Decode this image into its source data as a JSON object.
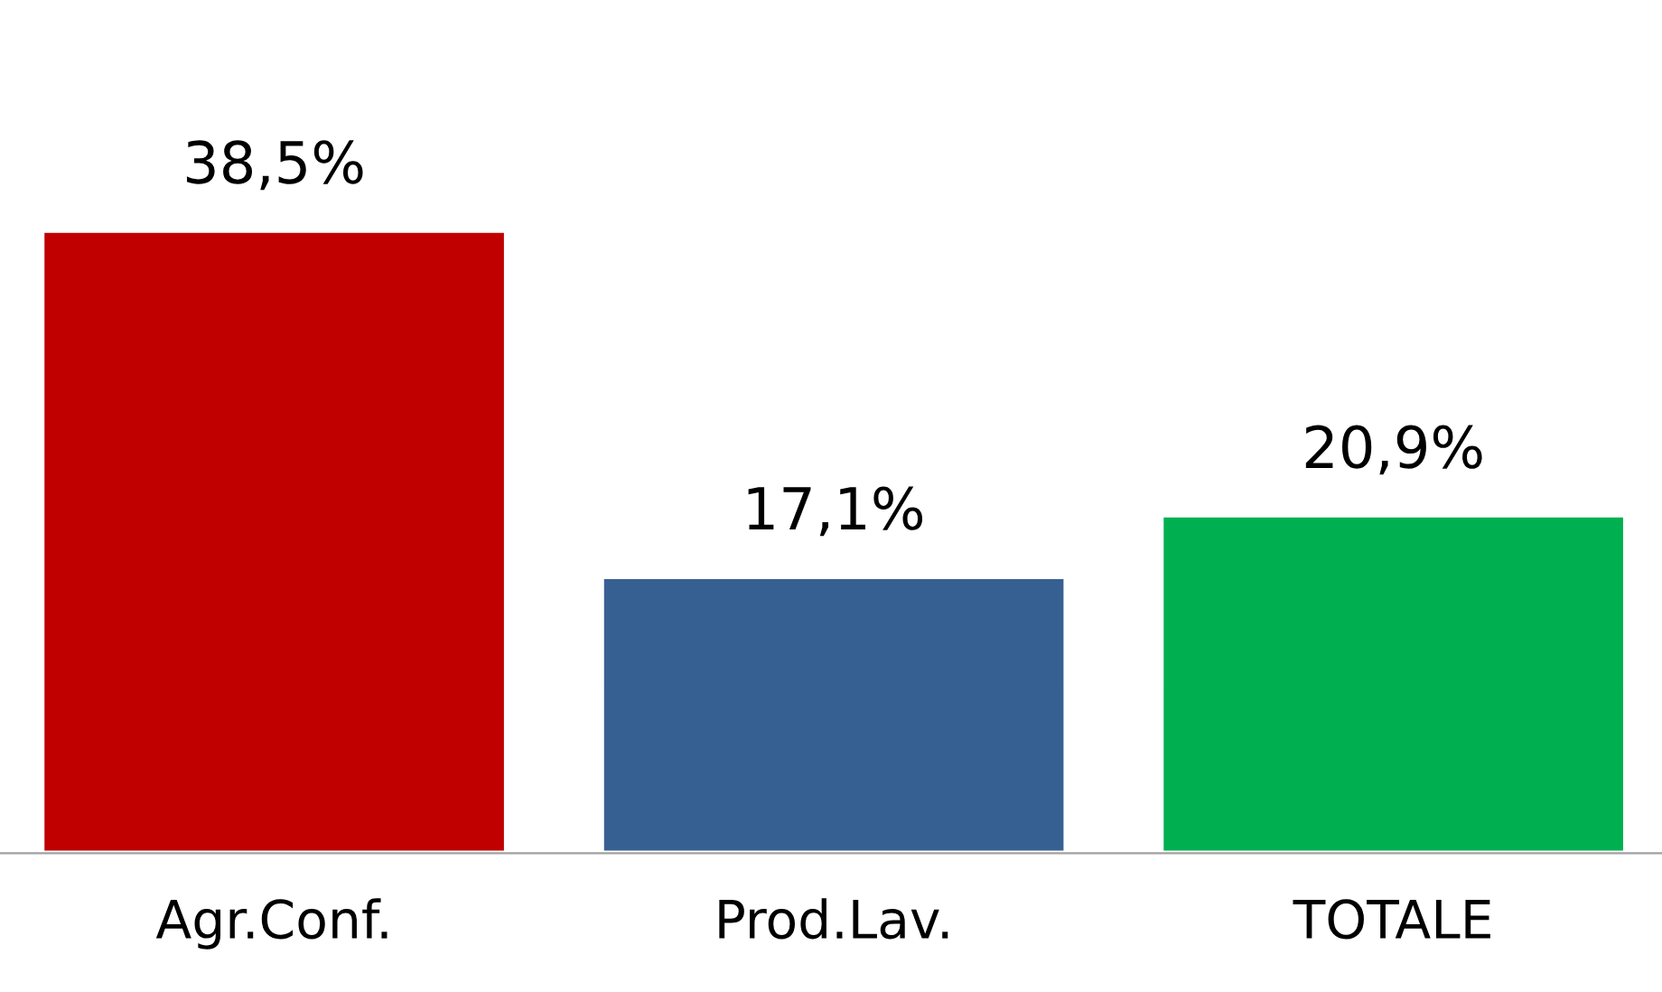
{
  "chart_data": {
    "type": "bar",
    "categories": [
      "Agr.Conf.",
      "Prod.Lav.",
      "TOTALE"
    ],
    "values": [
      38.5,
      17.1,
      20.9
    ],
    "colors": [
      "#c00000",
      "#376092",
      "#00b050"
    ],
    "value_labels": [
      "38,5%",
      "17,1%",
      "20,9%"
    ],
    "grid": false,
    "legend": false
  }
}
